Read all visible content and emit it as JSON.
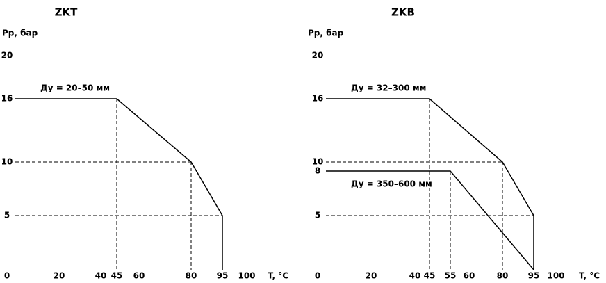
{
  "chart_data": [
    {
      "type": "line",
      "title": "ZKT",
      "y_label": "Pр, бар",
      "x_label": "T, °C",
      "xticks": [
        0,
        20,
        40,
        45,
        60,
        80,
        95,
        100
      ],
      "yticks": [
        5,
        10,
        16,
        20
      ],
      "series": [
        {
          "name": "Ду = 20–50 мм",
          "color": "#000000",
          "x": [
            0,
            45,
            80,
            95,
            95
          ],
          "values": [
            16,
            16,
            10,
            5,
            0
          ]
        }
      ]
    },
    {
      "type": "line",
      "title": "ZKB",
      "y_label": "Pр, бар",
      "x_label": "T, °C",
      "xticks": [
        0,
        20,
        40,
        45,
        55,
        60,
        80,
        95,
        100
      ],
      "yticks": [
        5,
        8,
        10,
        16,
        20
      ],
      "series": [
        {
          "name": "Ду = 32–300 мм",
          "color": "#000000",
          "x": [
            0,
            45,
            80,
            95,
            95
          ],
          "values": [
            16,
            16,
            10,
            5,
            0
          ]
        },
        {
          "name": "Ду = 350–600 мм",
          "color": "#000000",
          "x": [
            0,
            55,
            95
          ],
          "values": [
            8,
            8,
            0
          ]
        }
      ]
    }
  ]
}
